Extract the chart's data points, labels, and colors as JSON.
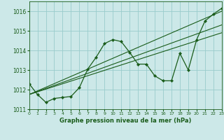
{
  "background_color": "#cce8e8",
  "grid_color": "#99cccc",
  "line_color": "#1a5c1a",
  "xlabel": "Graphe pression niveau de la mer (hPa)",
  "ylim": [
    1011.0,
    1016.5
  ],
  "xlim": [
    0,
    23
  ],
  "yticks": [
    1011,
    1012,
    1013,
    1014,
    1015,
    1016
  ],
  "xticks": [
    0,
    1,
    2,
    3,
    4,
    5,
    6,
    7,
    8,
    9,
    10,
    11,
    12,
    13,
    14,
    15,
    16,
    17,
    18,
    19,
    20,
    21,
    22,
    23
  ],
  "zigzag_x": [
    0,
    1,
    2,
    3,
    4,
    5,
    6,
    7,
    8,
    9,
    10,
    11,
    12,
    13,
    14,
    15,
    16,
    17,
    18,
    19,
    20,
    21,
    22,
    23
  ],
  "zigzag_y": [
    1012.3,
    1011.75,
    1011.35,
    1011.55,
    1011.6,
    1011.65,
    1012.1,
    1013.05,
    1013.65,
    1014.35,
    1014.55,
    1014.45,
    1013.9,
    1013.3,
    1013.3,
    1012.7,
    1012.45,
    1012.45,
    1013.85,
    1013.0,
    1014.55,
    1015.5,
    1015.85,
    1016.15
  ],
  "line1_x": [
    0,
    23
  ],
  "line1_y": [
    1011.75,
    1016.0
  ],
  "line2_x": [
    0,
    23
  ],
  "line2_y": [
    1011.75,
    1015.3
  ],
  "line3_x": [
    0,
    23
  ],
  "line3_y": [
    1011.75,
    1014.9
  ]
}
